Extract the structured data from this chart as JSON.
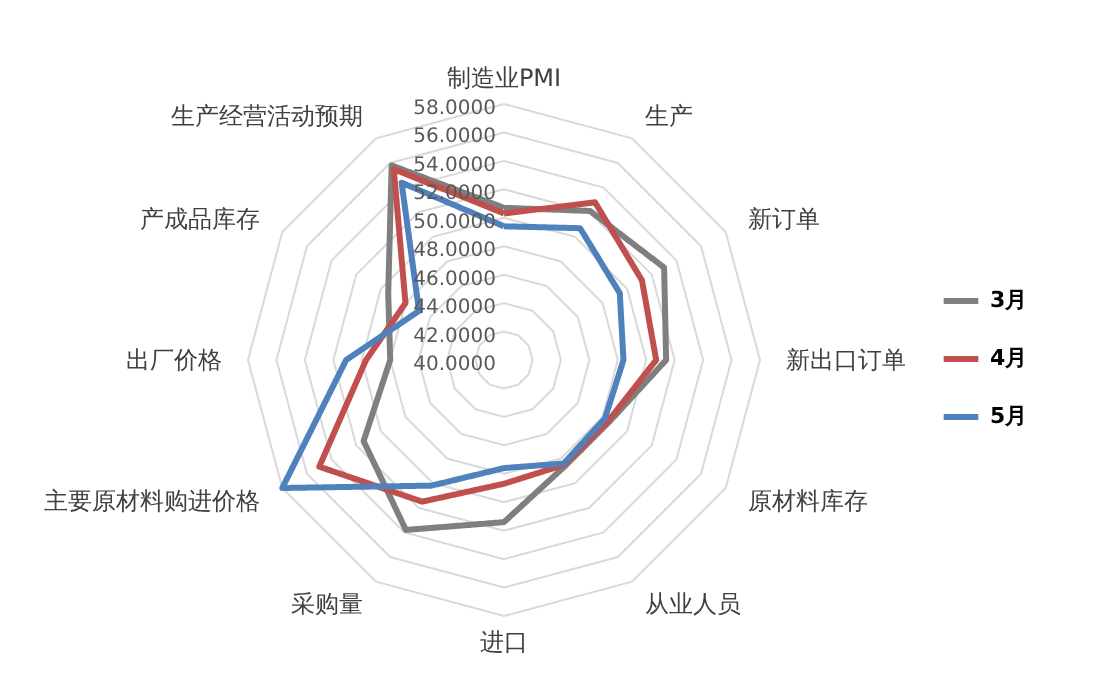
{
  "chart_data": {
    "type": "radar",
    "categories": [
      "制造业PMI",
      "生产",
      "新订单",
      "新出口订单",
      "原材料库存",
      "从业人员",
      "进口",
      "采购量",
      "主要原材料购进价格",
      "出厂价格",
      "产成品库存",
      "生产经营活动预期"
    ],
    "series": [
      {
        "name": "3月",
        "color": "#7f7f7f",
        "values": [
          50.7,
          52.1,
          53.0,
          51.4,
          48.6,
          48.6,
          51.4,
          53.8,
          51.4,
          48.0,
          49.4,
          55.8
        ]
      },
      {
        "name": "4月",
        "color": "#c0504d",
        "values": [
          50.3,
          52.8,
          51.2,
          50.7,
          48.5,
          48.5,
          48.7,
          51.5,
          55.0,
          49.7,
          48.0,
          55.5
        ]
      },
      {
        "name": "5月",
        "color": "#4f81bd",
        "values": [
          49.4,
          50.7,
          49.4,
          48.4,
          48.2,
          48.4,
          47.6,
          50.2,
          58.0,
          51.1,
          46.9,
          54.4
        ]
      }
    ],
    "ylim": [
      40,
      58
    ],
    "yticks": [
      {
        "value": 40,
        "label": "40.0000"
      },
      {
        "value": 42,
        "label": "42.0000"
      },
      {
        "value": 44,
        "label": "44.0000"
      },
      {
        "value": 46,
        "label": "46.0000"
      },
      {
        "value": 48,
        "label": "48.0000"
      },
      {
        "value": 50,
        "label": "50.0000"
      },
      {
        "value": 52,
        "label": "52.0000"
      },
      {
        "value": 54,
        "label": "54.0000"
      },
      {
        "value": 56,
        "label": "56.0000"
      },
      {
        "value": 58,
        "label": "58.0000"
      }
    ],
    "grid": true,
    "legend": "right",
    "line_style": "solid",
    "marker": "none"
  }
}
